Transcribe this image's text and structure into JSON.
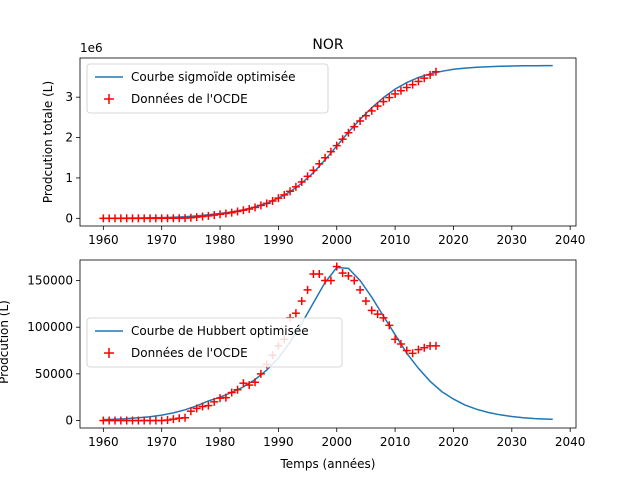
{
  "chart_data": [
    {
      "type": "line",
      "title": "NOR",
      "xlabel": "",
      "ylabel": "Prodcution totale (L)",
      "offset_label": "1e6",
      "xlim": [
        1956,
        2041
      ],
      "ylim": [
        -0.19,
        3.97
      ],
      "x_ticks": [
        1960,
        1970,
        1980,
        1990,
        2000,
        2010,
        2020,
        2030,
        2040
      ],
      "y_ticks": [
        0,
        1,
        2,
        3
      ],
      "y_tick_labels": [
        "0",
        "1",
        "2",
        "3"
      ],
      "legend_position": "upper-left",
      "fit_label": "Courbe sigmoïde optimisée",
      "data_label": "Données de l'OCDE",
      "fit_color": "#1f77b4",
      "data_color": "#ff0000",
      "fit": {
        "x": [
          1960,
          1962,
          1964,
          1966,
          1968,
          1970,
          1972,
          1974,
          1976,
          1978,
          1980,
          1982,
          1984,
          1986,
          1988,
          1990,
          1992,
          1994,
          1996,
          1998,
          2000,
          2002,
          2004,
          2006,
          2008,
          2010,
          2012,
          2014,
          2016,
          2018,
          2020,
          2022,
          2024,
          2026,
          2028,
          2030,
          2032,
          2034,
          2036,
          2037
        ],
        "y": [
          0.003,
          0.004,
          0.006,
          0.009,
          0.013,
          0.019,
          0.028,
          0.041,
          0.06,
          0.09,
          0.12,
          0.16,
          0.21,
          0.28,
          0.37,
          0.5,
          0.66,
          0.87,
          1.13,
          1.45,
          1.79,
          2.13,
          2.45,
          2.74,
          2.99,
          3.2,
          3.36,
          3.49,
          3.58,
          3.64,
          3.69,
          3.72,
          3.74,
          3.755,
          3.765,
          3.772,
          3.776,
          3.779,
          3.781,
          3.782
        ]
      },
      "data": {
        "x": [
          1960,
          1961,
          1962,
          1963,
          1964,
          1965,
          1966,
          1967,
          1968,
          1969,
          1970,
          1971,
          1972,
          1973,
          1974,
          1975,
          1976,
          1977,
          1978,
          1979,
          1980,
          1981,
          1982,
          1983,
          1984,
          1985,
          1986,
          1987,
          1988,
          1989,
          1990,
          1991,
          1992,
          1993,
          1994,
          1995,
          1996,
          1997,
          1998,
          1999,
          2000,
          2001,
          2002,
          2003,
          2004,
          2005,
          2006,
          2007,
          2008,
          2009,
          2010,
          2011,
          2012,
          2013,
          2014,
          2015,
          2016,
          2017
        ],
        "y": [
          0,
          0,
          0,
          0,
          0,
          0,
          0,
          0,
          0,
          0,
          0,
          0.001,
          0.002,
          0.003,
          0.005,
          0.015,
          0.03,
          0.045,
          0.06,
          0.08,
          0.1,
          0.12,
          0.14,
          0.17,
          0.2,
          0.23,
          0.27,
          0.32,
          0.37,
          0.43,
          0.5,
          0.58,
          0.67,
          0.78,
          0.9,
          1.04,
          1.19,
          1.35,
          1.5,
          1.65,
          1.8,
          1.96,
          2.12,
          2.27,
          2.41,
          2.54,
          2.66,
          2.78,
          2.89,
          2.99,
          3.08,
          3.16,
          3.24,
          3.31,
          3.39,
          3.47,
          3.55,
          3.63
        ]
      }
    },
    {
      "type": "line",
      "title": "",
      "xlabel": "Temps (années)",
      "ylabel": "Prodcution (L)",
      "xlim": [
        1956,
        2041
      ],
      "ylim": [
        -8000,
        172000
      ],
      "x_ticks": [
        1960,
        1970,
        1980,
        1990,
        2000,
        2010,
        2020,
        2030,
        2040
      ],
      "y_ticks": [
        0,
        50000,
        100000,
        150000
      ],
      "y_tick_labels": [
        "0",
        "50000",
        "100000",
        "150000"
      ],
      "legend_position": "center-left",
      "fit_label": "Courbe de Hubbert optimisée",
      "data_label": "Données de l'OCDE",
      "fit_color": "#1f77b4",
      "data_color": "#ff0000",
      "fit": {
        "x": [
          1960,
          1962,
          1964,
          1966,
          1968,
          1970,
          1972,
          1974,
          1976,
          1978,
          1980,
          1982,
          1984,
          1986,
          1988,
          1990,
          1992,
          1994,
          1996,
          1998,
          2000,
          2002,
          2004,
          2006,
          2008,
          2010,
          2012,
          2014,
          2016,
          2018,
          2020,
          2022,
          2024,
          2026,
          2028,
          2030,
          2032,
          2034,
          2036,
          2037
        ],
        "y": [
          1000,
          1400,
          2000,
          2900,
          4100,
          5800,
          8200,
          11500,
          15800,
          21000,
          25000,
          30000,
          36000,
          44000,
          54000,
          67000,
          84000,
          104000,
          126000,
          148000,
          164000,
          163000,
          150000,
          132000,
          112000,
          92000,
          72000,
          56000,
          42000,
          31000,
          23000,
          16500,
          12000,
          8600,
          6100,
          4300,
          3000,
          2100,
          1500,
          1300
        ]
      },
      "data": {
        "x": [
          1960,
          1961,
          1962,
          1963,
          1964,
          1965,
          1966,
          1967,
          1968,
          1969,
          1970,
          1971,
          1972,
          1973,
          1974,
          1975,
          1976,
          1977,
          1978,
          1979,
          1980,
          1981,
          1982,
          1983,
          1984,
          1985,
          1986,
          1987,
          1988,
          1989,
          1990,
          1991,
          1992,
          1993,
          1994,
          1995,
          1996,
          1997,
          1998,
          1999,
          2000,
          2001,
          2002,
          2003,
          2004,
          2005,
          2006,
          2007,
          2008,
          2009,
          2010,
          2011,
          2012,
          2013,
          2014,
          2015,
          2016,
          2017
        ],
        "y": [
          0,
          0,
          0,
          0,
          0,
          0,
          0,
          0,
          0,
          0,
          0,
          500,
          1500,
          2500,
          3000,
          10000,
          13000,
          15000,
          16000,
          20000,
          24000,
          24500,
          30000,
          33000,
          40000,
          38000,
          41000,
          50000,
          60000,
          70000,
          80000,
          87000,
          110000,
          115000,
          128000,
          140000,
          157000,
          157000,
          150000,
          150000,
          165000,
          158000,
          155000,
          150000,
          140000,
          128000,
          118000,
          114000,
          110000,
          102000,
          87000,
          82000,
          75000,
          72000,
          76000,
          78000,
          80000,
          80000
        ]
      }
    }
  ]
}
